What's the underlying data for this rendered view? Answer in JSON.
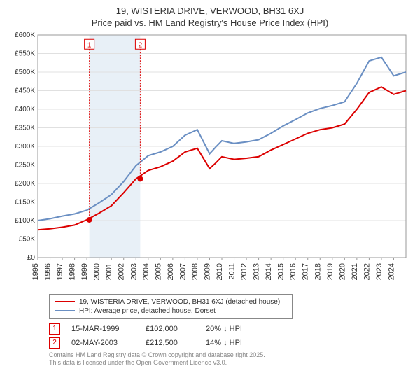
{
  "title_line1": "19, WISTERIA DRIVE, VERWOOD, BH31 6XJ",
  "title_line2": "Price paid vs. HM Land Registry's House Price Index (HPI)",
  "chart": {
    "type": "line",
    "background_color": "#ffffff",
    "plot_border_color": "#999999",
    "grid_color": "#e0e0e0",
    "highlight_band_fill": "#d6e4f0",
    "highlight_band_opacity": 0.55,
    "font_family": "Arial",
    "axis_label_fontsize": 10,
    "xtick_fontsize": 11,
    "xlim": [
      1995,
      2025
    ],
    "ylim": [
      0,
      600000
    ],
    "ytick_step": 50000,
    "ytick_labels": [
      "£0",
      "£50K",
      "£100K",
      "£150K",
      "£200K",
      "£250K",
      "£300K",
      "£350K",
      "£400K",
      "£450K",
      "£500K",
      "£550K",
      "£600K"
    ],
    "xticks": [
      1995,
      1996,
      1997,
      1998,
      1999,
      2000,
      2001,
      2002,
      2003,
      2004,
      2005,
      2006,
      2007,
      2008,
      2009,
      2010,
      2011,
      2012,
      2013,
      2014,
      2015,
      2016,
      2017,
      2018,
      2019,
      2020,
      2021,
      2022,
      2023,
      2024
    ],
    "highlight_band": {
      "from": 1999.2,
      "to": 2003.35
    },
    "years": [
      1995,
      1996,
      1997,
      1998,
      1999,
      2000,
      2001,
      2002,
      2003,
      2004,
      2005,
      2006,
      2007,
      2008,
      2009,
      2009.5,
      2010,
      2011,
      2012,
      2013,
      2014,
      2015,
      2016,
      2017,
      2018,
      2019,
      2020,
      2021,
      2022,
      2023,
      2024,
      2025
    ],
    "series_a": {
      "label": "19, WISTERIA DRIVE, VERWOOD, BH31 6XJ (detached house)",
      "color": "#dc0000",
      "line_width": 2,
      "values": [
        75000,
        78000,
        82000,
        88000,
        102000,
        120000,
        140000,
        175000,
        212500,
        235000,
        245000,
        260000,
        285000,
        295000,
        240000,
        255000,
        272000,
        265000,
        268000,
        272000,
        290000,
        305000,
        320000,
        335000,
        345000,
        350000,
        360000,
        400000,
        445000,
        460000,
        440000,
        450000
      ]
    },
    "series_b": {
      "label": "HPI: Average price, detached house, Dorset",
      "color": "#6a8fc3",
      "line_width": 2,
      "values": [
        100000,
        105000,
        112000,
        118000,
        128000,
        148000,
        170000,
        205000,
        248000,
        275000,
        285000,
        300000,
        330000,
        345000,
        280000,
        298000,
        315000,
        308000,
        312000,
        318000,
        335000,
        355000,
        372000,
        390000,
        402000,
        410000,
        420000,
        470000,
        530000,
        540000,
        490000,
        500000
      ]
    },
    "markers": [
      {
        "id": "1",
        "x": 1999.2,
        "y": 102000,
        "box_color": "#dc0000",
        "box_top_x": 1999.2,
        "box_top_y": 575000
      },
      {
        "id": "2",
        "x": 2003.35,
        "y": 212500,
        "box_color": "#dc0000",
        "box_top_x": 2003.35,
        "box_top_y": 575000
      }
    ]
  },
  "legend": {
    "border_color": "#888888",
    "fontsize": 10
  },
  "sales": [
    {
      "id": "1",
      "date": "15-MAR-1999",
      "price": "£102,000",
      "delta": "20% ↓ HPI",
      "box_color": "#dc0000"
    },
    {
      "id": "2",
      "date": "02-MAY-2003",
      "price": "£212,500",
      "delta": "14% ↓ HPI",
      "box_color": "#dc0000"
    }
  ],
  "footnote_line1": "Contains HM Land Registry data © Crown copyright and database right 2025.",
  "footnote_line2": "This data is licensed under the Open Government Licence v3.0."
}
